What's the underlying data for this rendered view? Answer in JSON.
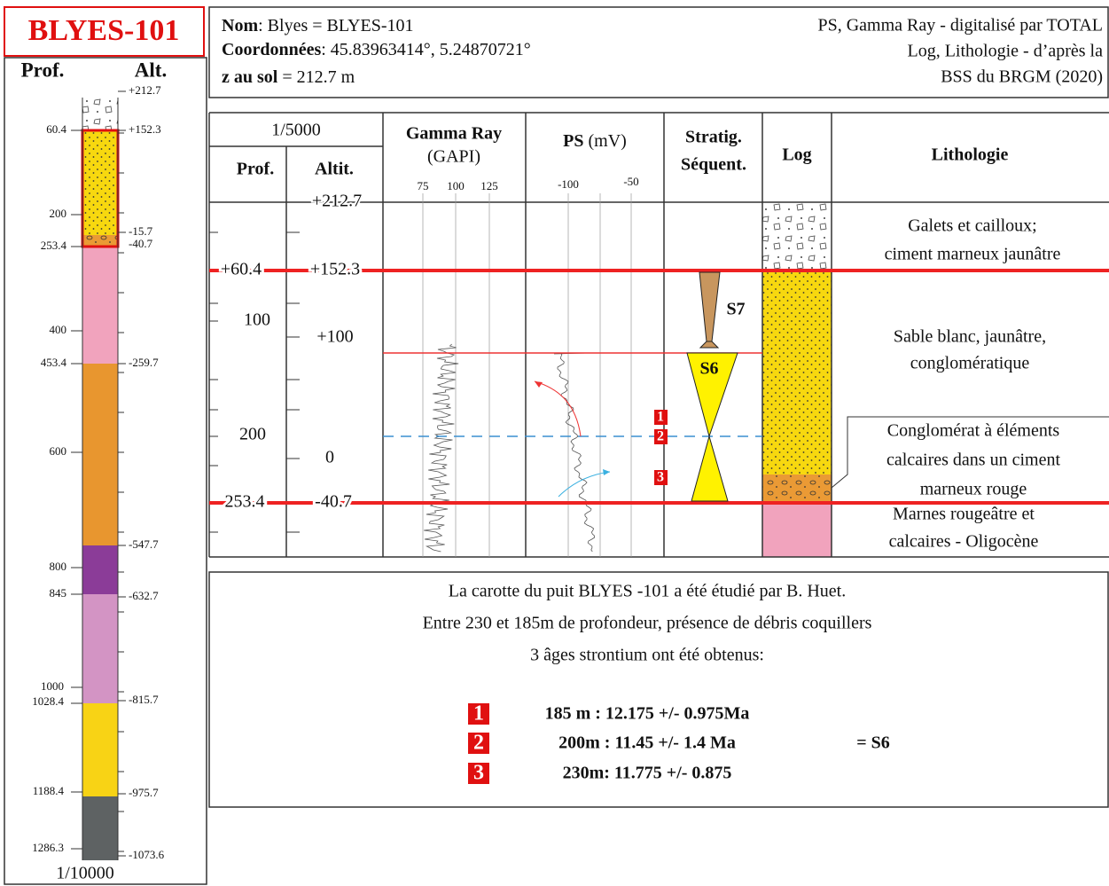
{
  "left_column": {
    "title": "BLYES-101",
    "depth_header": "Prof.",
    "alt_header": "Alt.",
    "depth_labels": [
      "60.4",
      "200",
      "253.4",
      "400",
      "453.4",
      "600",
      "800",
      "845",
      "1000",
      "1028.4",
      "1188.4",
      "1286.3"
    ],
    "alt_labels": [
      "+212.7",
      "+152.3",
      "-15.7",
      "-40.7",
      "-259.7",
      "-547.7",
      "-632.7",
      "-815.7",
      "-975.7",
      "-1073.6"
    ],
    "scale": "1/10000"
  },
  "header": {
    "name_label": "Nom",
    "name_value": ": Blyes = BLYES-101",
    "coord_label": "Coordonnées",
    "coord_value": ": 45.83963414°, 5.24870721°",
    "z_label": "z au sol",
    "z_value": " = 212.7 m",
    "source_lines": [
      "PS, Gamma Ray - digitalisé par TOTAL",
      "Log, Lithologie - d’après la",
      "BSS du BRGM (2020)"
    ]
  },
  "log_panel": {
    "scale": "1/5000",
    "depth_header": "Prof.",
    "alt_header": "Altit.",
    "gamma_title": "Gamma Ray",
    "gamma_unit": "(GAPI)",
    "gamma_ticks": [
      "75",
      "100",
      "125"
    ],
    "ps_title": "PS",
    "ps_unit": " (mV)",
    "ps_ticks": [
      "-100",
      "-50"
    ],
    "strat_header": [
      "Stratig.",
      "Séquent."
    ],
    "log_header": "Log",
    "litho_header": "Lithologie",
    "depth_labels": [
      "+60.4",
      "100",
      "200",
      "253.4"
    ],
    "alt_labels": [
      "+212.7",
      "+152.3",
      "+100",
      "0",
      "-40.7"
    ],
    "sequences": [
      "S7",
      "S6"
    ],
    "markers": [
      "1",
      "2",
      "3"
    ],
    "lithology": [
      [
        "Galets et cailloux;",
        "ciment marneux jaunâtre"
      ],
      [
        "Sable blanc, jaunâtre,",
        "conglomératique"
      ],
      [
        "Conglomérat à éléments",
        "calcaires dans un ciment",
        "marneux rouge"
      ],
      [
        "Marnes rougeâtre et",
        "calcaires - Oligocène"
      ]
    ]
  },
  "notes": {
    "lines": [
      "La carotte du puit BLYES -101 a été étudié par B. Huet.",
      "Entre 230 et 185m de profondeur, présence de débris coquillers",
      "3 âges strontium ont été obtenus:"
    ],
    "ages": [
      {
        "marker": "1",
        "text": "185 m : 12.175 +/- 0.975Ma"
      },
      {
        "marker": "2",
        "text": "200m : 11.45 +/- 1.4 Ma"
      },
      {
        "marker": "3",
        "text": "230m: 11.775 +/- 0.875"
      }
    ],
    "sequence": "= S6"
  }
}
